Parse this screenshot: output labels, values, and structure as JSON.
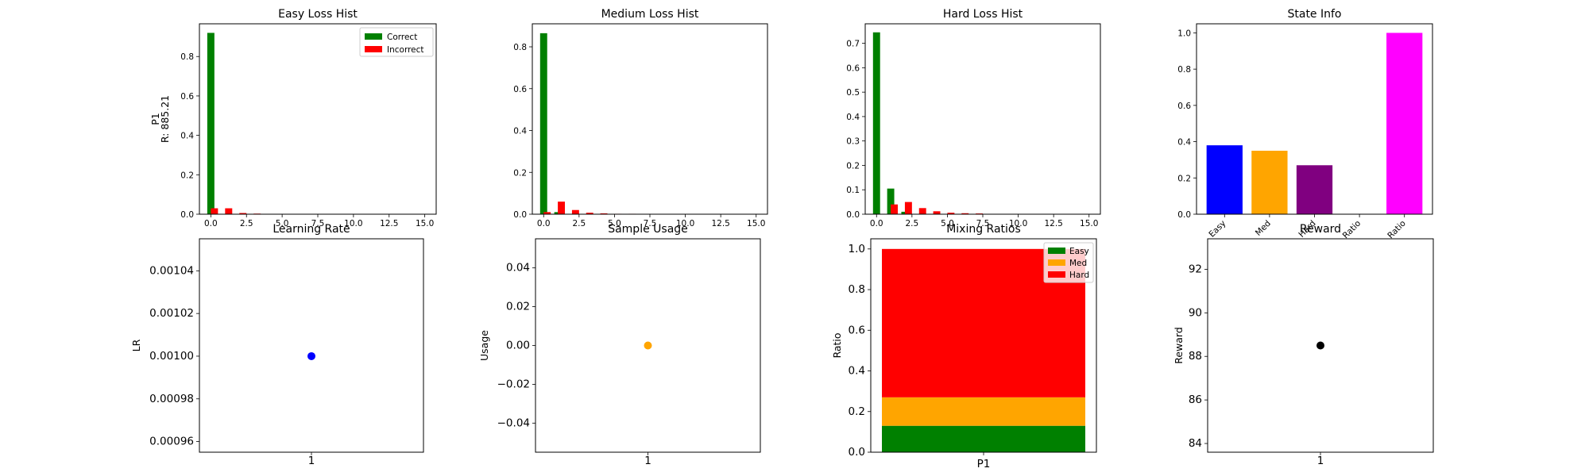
{
  "chart_data": [
    {
      "type": "bar",
      "title": "Easy Loss Hist",
      "ylabel": [
        "P1",
        "R: 885.21"
      ],
      "xlim": [
        -0.8,
        15.8
      ],
      "ylim": [
        0,
        0.966
      ],
      "xticks": [
        0.0,
        2.5,
        5.0,
        7.5,
        10.0,
        12.5,
        15.0
      ],
      "xticklabels": [
        "0.0",
        "2.5",
        "5.0",
        "7.5",
        "10.0",
        "12.5",
        "15.0"
      ],
      "yticks": [
        0.0,
        0.2,
        0.4,
        0.6,
        0.8
      ],
      "yticklabels": [
        "0.0",
        "0.2",
        "0.4",
        "0.6",
        "0.8"
      ],
      "bin_width": 0.5,
      "series": [
        {
          "name": "Correct",
          "color": "#008000",
          "x": [
            0
          ],
          "values": [
            0.92
          ]
        },
        {
          "name": "Incorrect",
          "color": "#ff0000",
          "x": [
            0,
            1,
            2,
            3,
            4
          ],
          "values": [
            0.03,
            0.03,
            0.006,
            0.003,
            0.002
          ]
        }
      ],
      "legend": "top-right"
    },
    {
      "type": "bar",
      "title": "Medium Loss Hist",
      "ylabel": [],
      "xlim": [
        -0.8,
        15.8
      ],
      "ylim": [
        0,
        0.91
      ],
      "xticks": [
        0.0,
        2.5,
        5.0,
        7.5,
        10.0,
        12.5,
        15.0
      ],
      "xticklabels": [
        "0.0",
        "2.5",
        "5.0",
        "7.5",
        "10.0",
        "12.5",
        "15.0"
      ],
      "yticks": [
        0.0,
        0.2,
        0.4,
        0.6,
        0.8
      ],
      "yticklabels": [
        "0.0",
        "0.2",
        "0.4",
        "0.6",
        "0.8"
      ],
      "bin_width": 0.5,
      "series": [
        {
          "name": "Correct",
          "color": "#008000",
          "x": [
            0,
            1
          ],
          "values": [
            0.865,
            0.01
          ]
        },
        {
          "name": "Incorrect",
          "color": "#ff0000",
          "x": [
            0,
            1,
            2,
            3,
            4,
            5,
            6
          ],
          "values": [
            0.01,
            0.06,
            0.02,
            0.007,
            0.004,
            0.002,
            0.002
          ]
        }
      ]
    },
    {
      "type": "bar",
      "title": "Hard Loss Hist",
      "ylabel": [],
      "xlim": [
        -0.8,
        15.8
      ],
      "ylim": [
        0,
        0.78
      ],
      "xticks": [
        0.0,
        2.5,
        5.0,
        7.5,
        10.0,
        12.5,
        15.0
      ],
      "xticklabels": [
        "0.0",
        "2.5",
        "5.0",
        "7.5",
        "10.0",
        "12.5",
        "15.0"
      ],
      "yticks": [
        0.0,
        0.1,
        0.2,
        0.3,
        0.4,
        0.5,
        0.6,
        0.7
      ],
      "yticklabels": [
        "0.0",
        "0.1",
        "0.2",
        "0.3",
        "0.4",
        "0.5",
        "0.6",
        "0.7"
      ],
      "bin_width": 0.5,
      "series": [
        {
          "name": "Correct",
          "color": "#008000",
          "x": [
            0,
            1,
            2
          ],
          "values": [
            0.745,
            0.105,
            0.01
          ]
        },
        {
          "name": "Incorrect",
          "color": "#ff0000",
          "x": [
            1,
            2,
            3,
            4,
            5,
            6,
            7
          ],
          "values": [
            0.04,
            0.05,
            0.025,
            0.012,
            0.006,
            0.004,
            0.003
          ]
        }
      ]
    },
    {
      "type": "bar",
      "title": "State Info",
      "ylim": [
        0,
        1.05
      ],
      "categories": [
        "Easy",
        "Med",
        "Hard",
        "Ratio",
        "Ratio"
      ],
      "values": [
        0.38,
        0.35,
        0.27,
        0.0,
        1.0
      ],
      "colors": [
        "#0000ff",
        "#ffa500",
        "#800080",
        "#ff0000",
        "#ff00ff"
      ],
      "yticks": [
        0.0,
        0.2,
        0.4,
        0.6,
        0.8,
        1.0
      ],
      "yticklabels": [
        "0.0",
        "0.2",
        "0.4",
        "0.6",
        "0.8",
        "1.0"
      ]
    },
    {
      "type": "scatter",
      "title": "Learning Rate",
      "ylabel": "LR",
      "xlim": [
        0.5,
        1.5
      ],
      "ylim": [
        0.000955,
        0.001055
      ],
      "xticks": [
        1
      ],
      "xticklabels": [
        "1"
      ],
      "yticks": [
        0.00096,
        0.00098,
        0.001,
        0.00102,
        0.00104
      ],
      "yticklabels": [
        "0.00096",
        "0.00098",
        "0.00100",
        "0.00102",
        "0.00104"
      ],
      "x": [
        1
      ],
      "y": [
        0.001
      ],
      "color": "#0000ff"
    },
    {
      "type": "scatter",
      "title": "Sample Usage",
      "ylabel": "Usage",
      "xlim": [
        0.5,
        1.5
      ],
      "ylim": [
        -0.055,
        0.055
      ],
      "xticks": [
        1
      ],
      "xticklabels": [
        "1"
      ],
      "yticks": [
        -0.04,
        -0.02,
        0.0,
        0.02,
        0.04
      ],
      "yticklabels": [
        "−0.04",
        "−0.02",
        "0.00",
        "0.02",
        "0.04"
      ],
      "x": [
        1
      ],
      "y": [
        0.0
      ],
      "color": "#ffa500"
    },
    {
      "type": "bar",
      "title": "Mixing Ratios",
      "ylabel": "Ratio",
      "ylim": [
        0,
        1.05
      ],
      "categories": [
        "P1"
      ],
      "stacked": true,
      "series": [
        {
          "name": "Easy",
          "color": "#008000",
          "values": [
            0.13
          ]
        },
        {
          "name": "Med",
          "color": "#ffa500",
          "values": [
            0.14
          ]
        },
        {
          "name": "Hard",
          "color": "#ff0000",
          "values": [
            0.73
          ]
        }
      ],
      "yticks": [
        0.0,
        0.2,
        0.4,
        0.6,
        0.8,
        1.0
      ],
      "yticklabels": [
        "0.0",
        "0.2",
        "0.4",
        "0.6",
        "0.8",
        "1.0"
      ],
      "legend": "top-right"
    },
    {
      "type": "scatter",
      "title": "Reward",
      "ylabel": "Reward",
      "xlim": [
        0.5,
        1.5
      ],
      "ylim": [
        83.6,
        93.4
      ],
      "xticks": [
        1
      ],
      "xticklabels": [
        "1"
      ],
      "yticks": [
        84,
        86,
        88,
        90,
        92
      ],
      "yticklabels": [
        "84",
        "86",
        "88",
        "90",
        "92"
      ],
      "x": [
        1
      ],
      "y": [
        88.5
      ],
      "color": "#000000"
    }
  ]
}
